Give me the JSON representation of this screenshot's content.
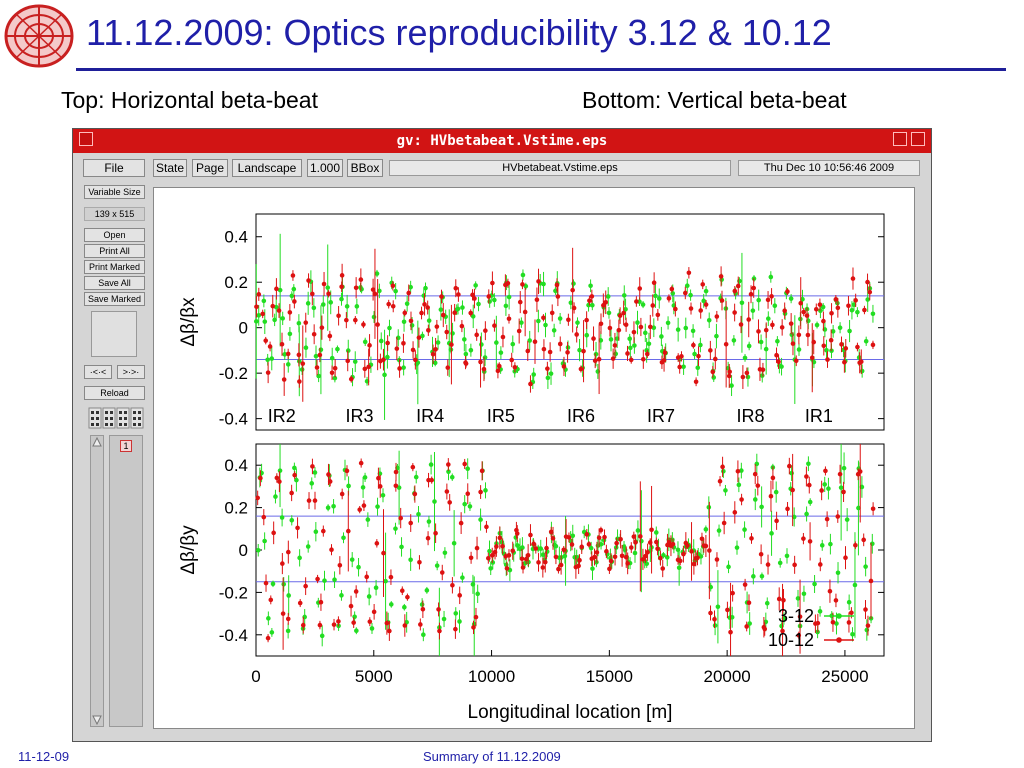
{
  "slide": {
    "title": "11.12.2009: Optics reproducibility 3.12 & 10.12",
    "subtitle_left": "Top: Horizontal beta-beat",
    "subtitle_right": "Bottom: Vertical beta-beat",
    "footer_date": "11-12-09",
    "footer_center": "Summary of 11.12.2009",
    "title_color": "#1f1fa8"
  },
  "gv": {
    "window_title": "gv: HVbetabeat.Vstime.eps",
    "file_button": "File",
    "state_button": "State",
    "page_button": "Page",
    "orientation_button": "Landscape",
    "zoom_button": "1.000",
    "bbox_button": "BBox",
    "filename": "HVbetabeat.Vstime.eps",
    "date": "Thu Dec 10 10:56:46 2009",
    "variable_size_button": "Variable Size",
    "size_label": "139 x 515",
    "open_button": "Open",
    "print_all_button": "Print All",
    "print_marked_button": "Print Marked",
    "save_all_button": "Save All",
    "save_marked_button": "Save Marked",
    "prev_button": "·<·<",
    "next_button": ">·>·",
    "reload_button": "Reload",
    "page_number": "1",
    "titlebar_color": "#d11414"
  },
  "chart_data": [
    {
      "type": "scatter",
      "ylabel": "Δβ/βx",
      "xlim": [
        0,
        26659
      ],
      "ylim": [
        -0.45,
        0.5
      ],
      "yticks": [
        "0.4",
        "0.2",
        "0",
        "-0.2",
        "-0.4"
      ],
      "reference_lines": [
        0.14,
        -0.14
      ],
      "annotations": [
        "IR2",
        "IR3",
        "IR4",
        "IR5",
        "IR6",
        "IR7",
        "IR8",
        "IR1"
      ],
      "annotation_x": [
        500,
        3800,
        6800,
        9800,
        13200,
        16600,
        20400,
        23300
      ],
      "series": [
        {
          "name": "3-12",
          "color": "#22dd22"
        },
        {
          "name": "10-12",
          "color": "#dd1111"
        }
      ]
    },
    {
      "type": "scatter",
      "ylabel": "Δβ/βy",
      "xlabel": "Longitudinal location [m]",
      "xlim": [
        0,
        26659
      ],
      "ylim": [
        -0.5,
        0.5
      ],
      "xticks": [
        "0",
        "5000",
        "10000",
        "15000",
        "20000",
        "25000"
      ],
      "xtick_values": [
        0,
        5000,
        10000,
        15000,
        20000,
        25000
      ],
      "yticks": [
        "0.4",
        "0.2",
        "0",
        "-0.2",
        "-0.4"
      ],
      "reference_lines": [
        0.16,
        -0.15
      ],
      "series": [
        {
          "name": "3-12",
          "color": "#22dd22"
        },
        {
          "name": "10-12",
          "color": "#dd1111"
        }
      ]
    }
  ]
}
